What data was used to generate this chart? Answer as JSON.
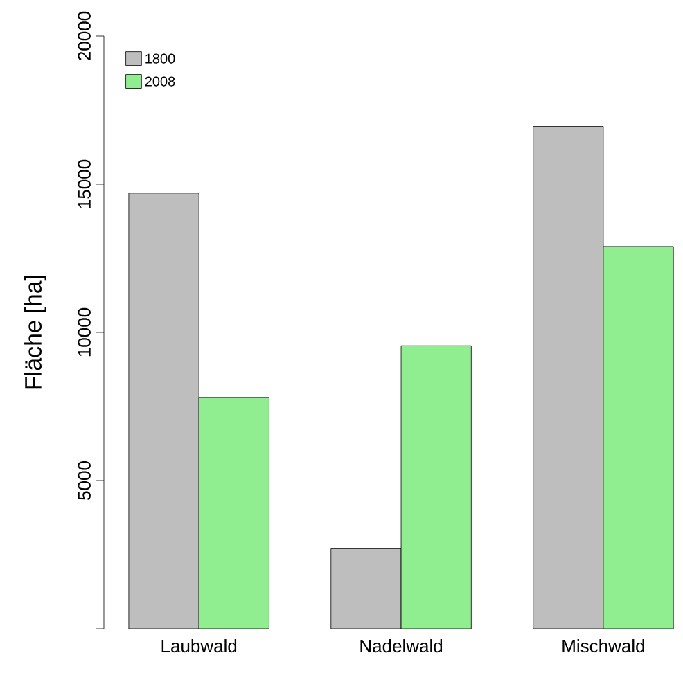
{
  "chart_data": {
    "type": "bar",
    "ylabel": "Fläche [ha]",
    "categories": [
      "Laubwald",
      "Nadelwald",
      "Mischwald"
    ],
    "series": [
      {
        "name": "1800",
        "color": "#bebebe",
        "values": [
          14700,
          2700,
          16950
        ]
      },
      {
        "name": "2008",
        "color": "#90ee90",
        "values": [
          7800,
          9550,
          12900
        ]
      }
    ],
    "ylim": [
      0,
      20000
    ],
    "yticks": [
      {
        "value": 0,
        "label": null
      },
      5000,
      10000,
      15000,
      20000
    ],
    "legend": "top left",
    "grid": false
  }
}
